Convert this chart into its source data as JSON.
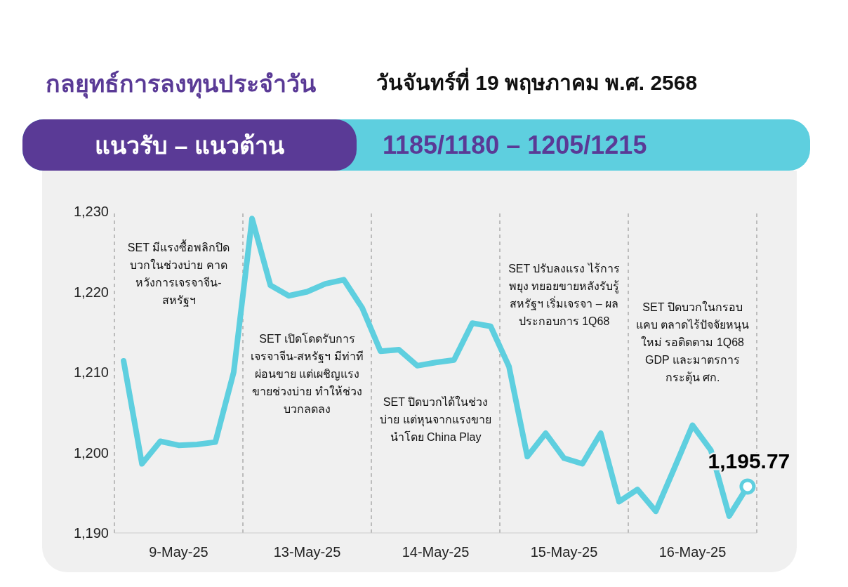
{
  "chart_data": {
    "type": "line",
    "title": "กลยุทธ์การลงทุนประจำวัน",
    "subtitle": "วันจันทร์ที่ 19 พฤษภาคม พ.ศ. 2568",
    "annotations": [
      "แนวรับ – แนวต้าน",
      "1185/1180 – 1205/1215",
      "SET มีแรงซื้อพลิกปิดบวกในช่วงบ่าย คาดหวังการเจรจาจีน-สหรัฐฯ",
      "SET เปิดโดดรับการเจรจาจีน-สหรัฐฯ มีท่าทีผ่อนขาย แต่เผชิญแรงขายช่วงบ่าย ทำให้ช่วงบวกลดลง",
      "SET ปิดบวกได้ในช่วงบ่าย แต่หุนจากแรงขายนำโดย China Play",
      "SET ปรับลงแรง ไร้การพยุง ทยอยขายหลังรับรู้สหรัฐฯ เริ่มเจรจา – ผลประกอบการ 1Q68",
      "SET ปิดบวกในกรอบแคบ ตลาดไร้ปัจจัยหนุนใหม่ รอติดตาม 1Q68 GDP และมาตรการกระตุ้น ศก."
    ],
    "categories": [
      null,
      null,
      null,
      "9-May-25",
      null,
      null,
      null,
      null,
      null,
      null,
      "13-May-25",
      null,
      null,
      null,
      null,
      null,
      null,
      "14-May-25",
      null,
      null,
      null,
      null,
      null,
      null,
      "15-May-25",
      null,
      null,
      null,
      null,
      null,
      null,
      "16-May-25",
      null,
      null,
      null
    ],
    "series": [
      {
        "color": "#5ecfdf",
        "values": [
          1211.4,
          1198.6,
          1201.4,
          1200.9,
          1201.0,
          1201.3,
          1210.0,
          1229.1,
          1220.8,
          1219.5,
          1220.0,
          1221.0,
          1221.5,
          1218.0,
          1212.6,
          1212.8,
          1210.8,
          1211.2,
          1211.5,
          1216.1,
          1215.7,
          1210.7,
          1199.5,
          1202.4,
          1199.3,
          1198.6,
          1202.4,
          1193.9,
          1195.4,
          1192.7,
          1198.0,
          1203.4,
          1200.3,
          1192.1,
          1195.77
        ],
        "value_labels": [
          null,
          null,
          null,
          null,
          null,
          null,
          null,
          null,
          null,
          null,
          null,
          null,
          null,
          null,
          null,
          null,
          null,
          null,
          null,
          null,
          null,
          null,
          null,
          null,
          null,
          null,
          null,
          null,
          null,
          null,
          null,
          null,
          null,
          null,
          "1,195.77"
        ]
      }
    ],
    "ylim": [
      1190,
      1230
    ],
    "yticks": [
      {
        "value": 1190,
        "label": "1,190"
      },
      {
        "value": 1200,
        "label": "1,200"
      },
      {
        "value": 1210,
        "label": "1,210"
      },
      {
        "value": 1220,
        "label": "1,220"
      },
      {
        "value": 1230,
        "label": "1,230"
      }
    ],
    "grid": "x",
    "marker": "none",
    "line_style": "solid"
  }
}
